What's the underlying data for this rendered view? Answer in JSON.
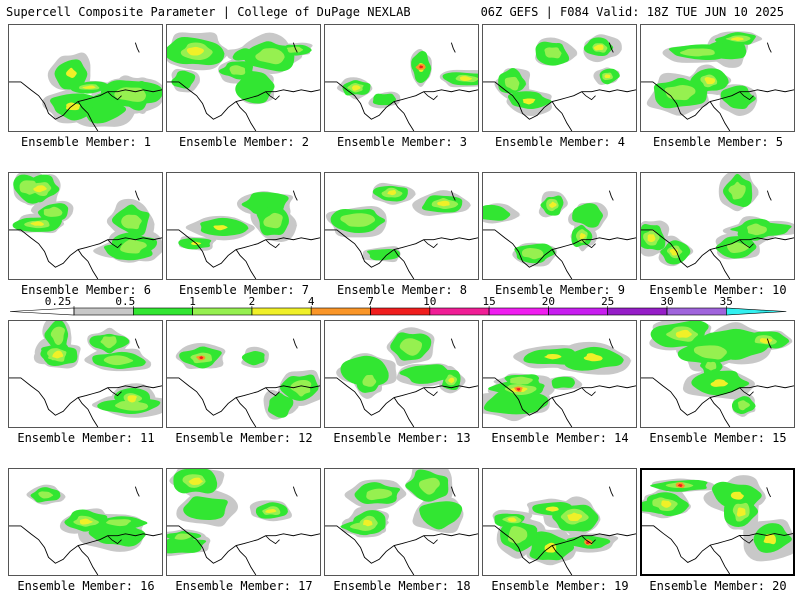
{
  "header": {
    "left": "Supercell Composite Parameter | College of DuPage NEXLAB",
    "right": "06Z GEFS | F084 Valid: 18Z TUE JUN 10 2025"
  },
  "colorbar": {
    "ticks": [
      "0.25",
      "0.5",
      "1",
      "2",
      "4",
      "7",
      "10",
      "15",
      "20",
      "25",
      "30",
      "35"
    ],
    "colors": [
      "#c8c8c8",
      "#32e632",
      "#96f050",
      "#f0f028",
      "#fa9628",
      "#f01e1e",
      "#f01e96",
      "#f01ef0",
      "#c81ef0",
      "#961ec8",
      "#a064dc",
      "#32f0f0"
    ]
  },
  "members": [
    {
      "label": "Ensemble Member: 1"
    },
    {
      "label": "Ensemble Member: 2"
    },
    {
      "label": "Ensemble Member: 3"
    },
    {
      "label": "Ensemble Member: 4"
    },
    {
      "label": "Ensemble Member: 5"
    },
    {
      "label": "Ensemble Member: 6"
    },
    {
      "label": "Ensemble Member: 7"
    },
    {
      "label": "Ensemble Member: 8"
    },
    {
      "label": "Ensemble Member: 9"
    },
    {
      "label": "Ensemble Member: 10"
    },
    {
      "label": "Ensemble Member: 11"
    },
    {
      "label": "Ensemble Member: 12"
    },
    {
      "label": "Ensemble Member: 13"
    },
    {
      "label": "Ensemble Member: 14"
    },
    {
      "label": "Ensemble Member: 15"
    },
    {
      "label": "Ensemble Member: 16"
    },
    {
      "label": "Ensemble Member: 17"
    },
    {
      "label": "Ensemble Member: 18"
    },
    {
      "label": "Ensemble Member: 19"
    },
    {
      "label": "Ensemble Member: 20",
      "selected": true
    }
  ]
}
